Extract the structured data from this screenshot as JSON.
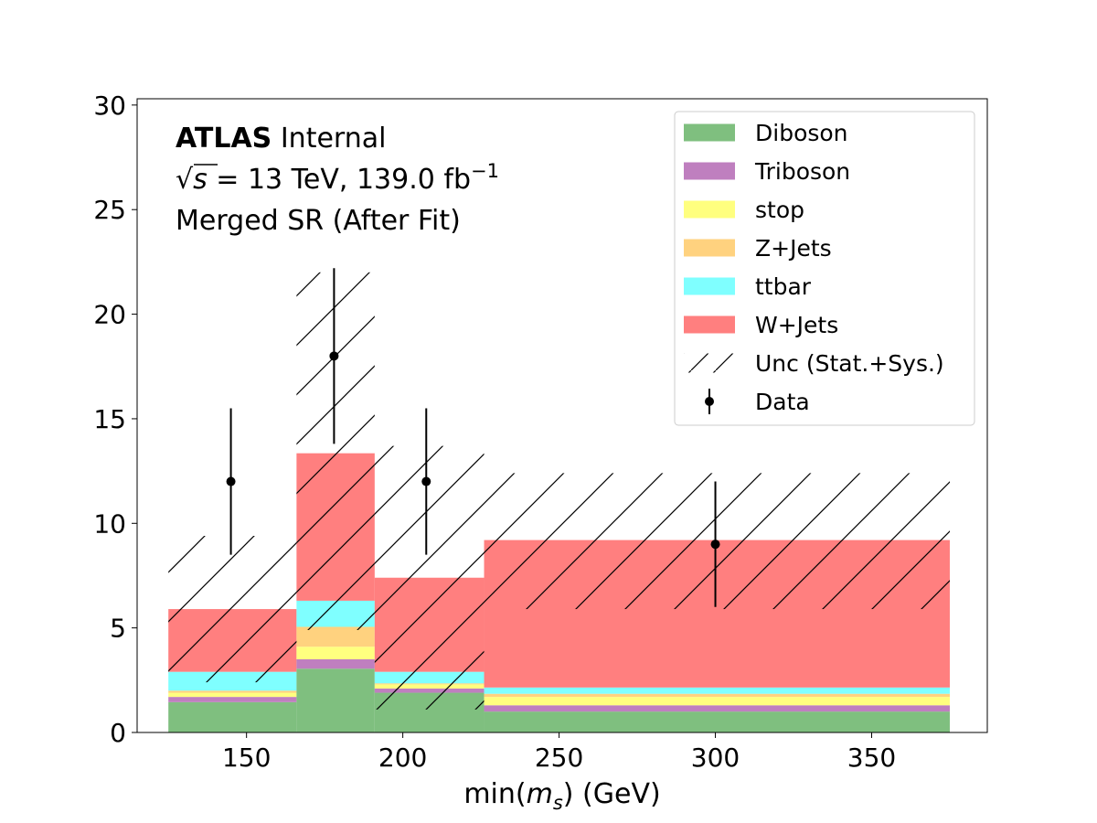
{
  "chart_data": {
    "type": "bar",
    "stacked": true,
    "bins": [
      [
        125,
        166
      ],
      [
        166,
        191
      ],
      [
        191,
        226
      ],
      [
        226,
        375
      ]
    ],
    "series": [
      {
        "name": "Diboson",
        "color": "#7fbf7f",
        "values": [
          1.45,
          3.05,
          1.9,
          1.0
        ]
      },
      {
        "name": "Triboson",
        "color": "#bf7fbf",
        "values": [
          0.25,
          0.45,
          0.2,
          0.3
        ]
      },
      {
        "name": "stop",
        "color": "#ffff7f",
        "values": [
          0.2,
          0.6,
          0.2,
          0.4
        ]
      },
      {
        "name": "Z+Jets",
        "color": "#ffd27f",
        "values": [
          0.1,
          0.95,
          0.05,
          0.15
        ]
      },
      {
        "name": "ttbar",
        "color": "#7fffff",
        "values": [
          0.9,
          1.25,
          0.55,
          0.3
        ]
      },
      {
        "name": "W+Jets",
        "color": "#ff7f7f",
        "values": [
          3.0,
          7.05,
          4.5,
          7.05
        ]
      }
    ],
    "uncertainty": {
      "name": "Unc (Stat.+Sys.)",
      "low": [
        2.4,
        4.9,
        1.1,
        5.9
      ],
      "high": [
        9.4,
        22.0,
        13.7,
        12.4
      ]
    },
    "data_points": {
      "name": "Data",
      "x": [
        145,
        178,
        207.5,
        300
      ],
      "y": [
        12,
        18,
        12,
        9
      ],
      "err_low": [
        3.5,
        4.2,
        3.5,
        3.0
      ],
      "err_high": [
        3.5,
        4.2,
        3.5,
        3.0
      ]
    },
    "xlim": [
      115,
      387
    ],
    "ylim": [
      0,
      30.3
    ],
    "x_ticks": [
      150,
      200,
      250,
      300,
      350
    ],
    "y_ticks": [
      0,
      5,
      10,
      15,
      20,
      25,
      30
    ],
    "xlabel_prefix": "min(",
    "xlabel_var": "m",
    "xlabel_sub": "s",
    "xlabel_suffix": ") (GeV)",
    "legend_position": "top-right",
    "grid": false
  },
  "annotation": {
    "atlas_bold": "ATLAS",
    "atlas_rest": " Internal",
    "energy_sqrt": "√",
    "energy_s": "s",
    "energy_rest": " = 13 TeV, 139.0 fb",
    "energy_sup": "−1",
    "region": "Merged SR (After Fit)"
  }
}
